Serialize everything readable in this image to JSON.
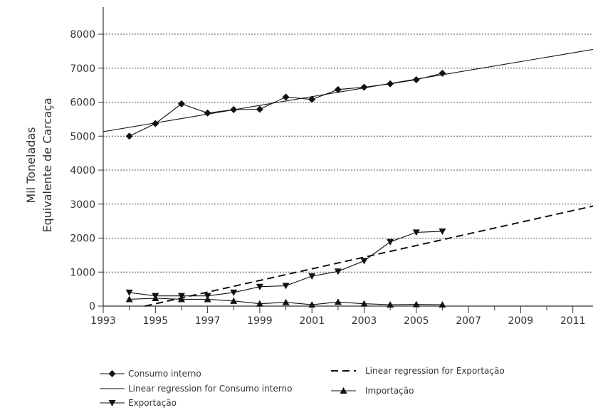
{
  "chart_data": {
    "type": "line",
    "title": "",
    "xlabel": "",
    "ylabel_lines": [
      "Mil Toneladas",
      "Equivalente de Carcaça"
    ],
    "xlim": [
      1993,
      2012
    ],
    "ylim": [
      0,
      8000
    ],
    "x_ticks": [
      1993,
      1995,
      1997,
      1999,
      2001,
      2003,
      2005,
      2007,
      2009,
      2011
    ],
    "y_ticks": [
      0,
      1000,
      2000,
      3000,
      4000,
      5000,
      6000,
      7000,
      8000
    ],
    "grid": "horizontal dashed",
    "legend_position": "bottom",
    "series": [
      {
        "name": "Consumo interno",
        "marker": "diamond",
        "x": [
          1994,
          1995,
          1996,
          1997,
          1998,
          1999,
          2000,
          2001,
          2002,
          2003,
          2004,
          2005,
          2006
        ],
        "values": [
          5000,
          5370,
          5950,
          5680,
          5780,
          5790,
          6150,
          6080,
          6370,
          6440,
          6540,
          6660,
          6850
        ]
      },
      {
        "name": "Linear regression for Consumo interno",
        "style": "thin-solid",
        "x": [
          1993,
          2012
        ],
        "values": [
          5130,
          7580
        ]
      },
      {
        "name": "Exportação",
        "marker": "triangle-down",
        "x": [
          1994,
          1995,
          1996,
          1997,
          1998,
          1999,
          2000,
          2001,
          2002,
          2003,
          2004,
          2005,
          2006
        ],
        "values": [
          400,
          300,
          300,
          300,
          400,
          570,
          600,
          880,
          1020,
          1330,
          1890,
          2170,
          2200
        ]
      },
      {
        "name": "Linear regression for Exportação",
        "style": "dashed",
        "x": [
          1994.6,
          2012
        ],
        "values": [
          0,
          2980
        ]
      },
      {
        "name": "Importação",
        "marker": "triangle-up",
        "x": [
          1994,
          1995,
          1996,
          1997,
          1998,
          1999,
          2000,
          2001,
          2002,
          2003,
          2004,
          2005,
          2006
        ],
        "values": [
          200,
          230,
          200,
          200,
          150,
          70,
          110,
          40,
          120,
          70,
          40,
          50,
          40
        ]
      }
    ]
  }
}
